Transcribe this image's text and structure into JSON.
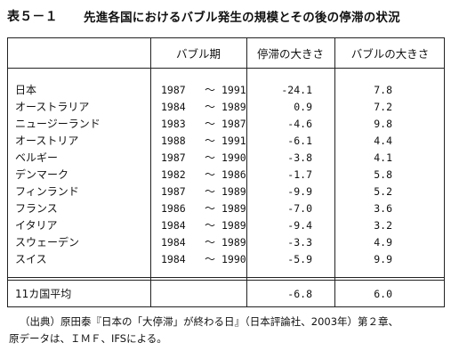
{
  "title": {
    "label": "表５－１",
    "text": "先進各国におけるバブル発生の規模とその後の停滞の状況"
  },
  "table": {
    "headers": {
      "country": "",
      "period": "バブル期",
      "stagnation": "停滞の大きさ",
      "bubble": "バブルの大きさ"
    },
    "rows": [
      {
        "country": "日本",
        "start": "1987",
        "tilde": "～",
        "end": "1991",
        "stagnation": "-24.1",
        "bubble": "7.8"
      },
      {
        "country": "オーストラリア",
        "start": "1984",
        "tilde": "～",
        "end": "1989",
        "stagnation": "0.9",
        "bubble": "7.2"
      },
      {
        "country": "ニュージーランド",
        "start": "1983",
        "tilde": "～",
        "end": "1987",
        "stagnation": "-4.6",
        "bubble": "9.8"
      },
      {
        "country": "オーストリア",
        "start": "1988",
        "tilde": "～",
        "end": "1991",
        "stagnation": "-6.1",
        "bubble": "4.4"
      },
      {
        "country": "ベルギー",
        "start": "1987",
        "tilde": "～",
        "end": "1990",
        "stagnation": "-3.8",
        "bubble": "4.1"
      },
      {
        "country": "デンマーク",
        "start": "1982",
        "tilde": "～",
        "end": "1986",
        "stagnation": "-1.7",
        "bubble": "5.8"
      },
      {
        "country": "フィンランド",
        "start": "1987",
        "tilde": "～",
        "end": "1989",
        "stagnation": "-9.9",
        "bubble": "5.2"
      },
      {
        "country": "フランス",
        "start": "1986",
        "tilde": "～",
        "end": "1989",
        "stagnation": "-7.0",
        "bubble": "3.6"
      },
      {
        "country": "イタリア",
        "start": "1984",
        "tilde": "～",
        "end": "1989",
        "stagnation": "-9.4",
        "bubble": "3.2"
      },
      {
        "country": "スウェーデン",
        "start": "1984",
        "tilde": "～",
        "end": "1989",
        "stagnation": "-3.3",
        "bubble": "4.9"
      },
      {
        "country": "スイス",
        "start": "1984",
        "tilde": "～",
        "end": "1990",
        "stagnation": "-5.9",
        "bubble": "9.9"
      }
    ],
    "average": {
      "label": "11カ国平均",
      "stagnation": "-6.8",
      "bubble": "6.0"
    }
  },
  "source": {
    "line1": "（出典）原田泰『日本の「大停滞」が終わる日』（日本評論社、2003年）第２章、",
    "line2": "原データは、ＩＭＦ、IFSによる。"
  }
}
